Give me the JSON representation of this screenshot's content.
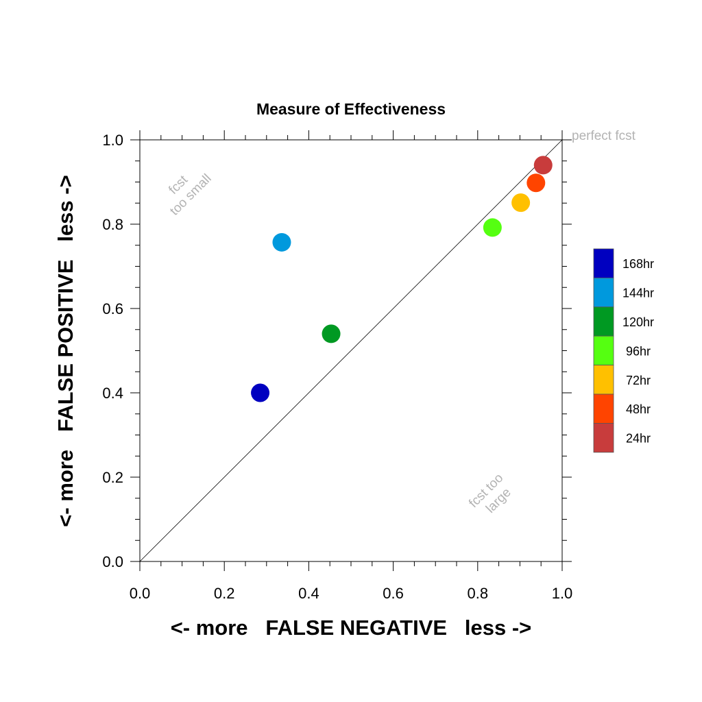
{
  "chart_data": {
    "type": "scatter",
    "title": "Measure of Effectiveness",
    "xlabel": "<- more   FALSE NEGATIVE   less ->",
    "ylabel": "<- more   FALSE POSITIVE   less ->",
    "xlim": [
      0.0,
      1.0
    ],
    "ylim": [
      0.0,
      1.0
    ],
    "x_ticks": [
      "0.0",
      "0.2",
      "0.4",
      "0.6",
      "0.8",
      "1.0"
    ],
    "y_ticks": [
      "0.0",
      "0.2",
      "0.4",
      "0.6",
      "0.8",
      "1.0"
    ],
    "grid": false,
    "diagonal_line": true,
    "legend_position": "right",
    "annotations": [
      {
        "text": [
          "fcst",
          "too small"
        ]
      },
      {
        "text": [
          "fcst too",
          "large"
        ]
      },
      {
        "text": [
          "perfect fcst"
        ]
      }
    ],
    "series": [
      {
        "name": "168hr",
        "color": "#0000c0",
        "x": 0.285,
        "y": 0.4
      },
      {
        "name": "144hr",
        "color": "#0099dd",
        "x": 0.336,
        "y": 0.757
      },
      {
        "name": "120hr",
        "color": "#009922",
        "x": 0.453,
        "y": 0.54
      },
      {
        "name": "96hr",
        "color": "#55ff11",
        "x": 0.835,
        "y": 0.792
      },
      {
        "name": "72hr",
        "color": "#ffc000",
        "x": 0.902,
        "y": 0.851
      },
      {
        "name": "48hr",
        "color": "#ff4400",
        "x": 0.938,
        "y": 0.898
      },
      {
        "name": "24hr",
        "color": "#c83c3c",
        "x": 0.955,
        "y": 0.94
      }
    ]
  }
}
